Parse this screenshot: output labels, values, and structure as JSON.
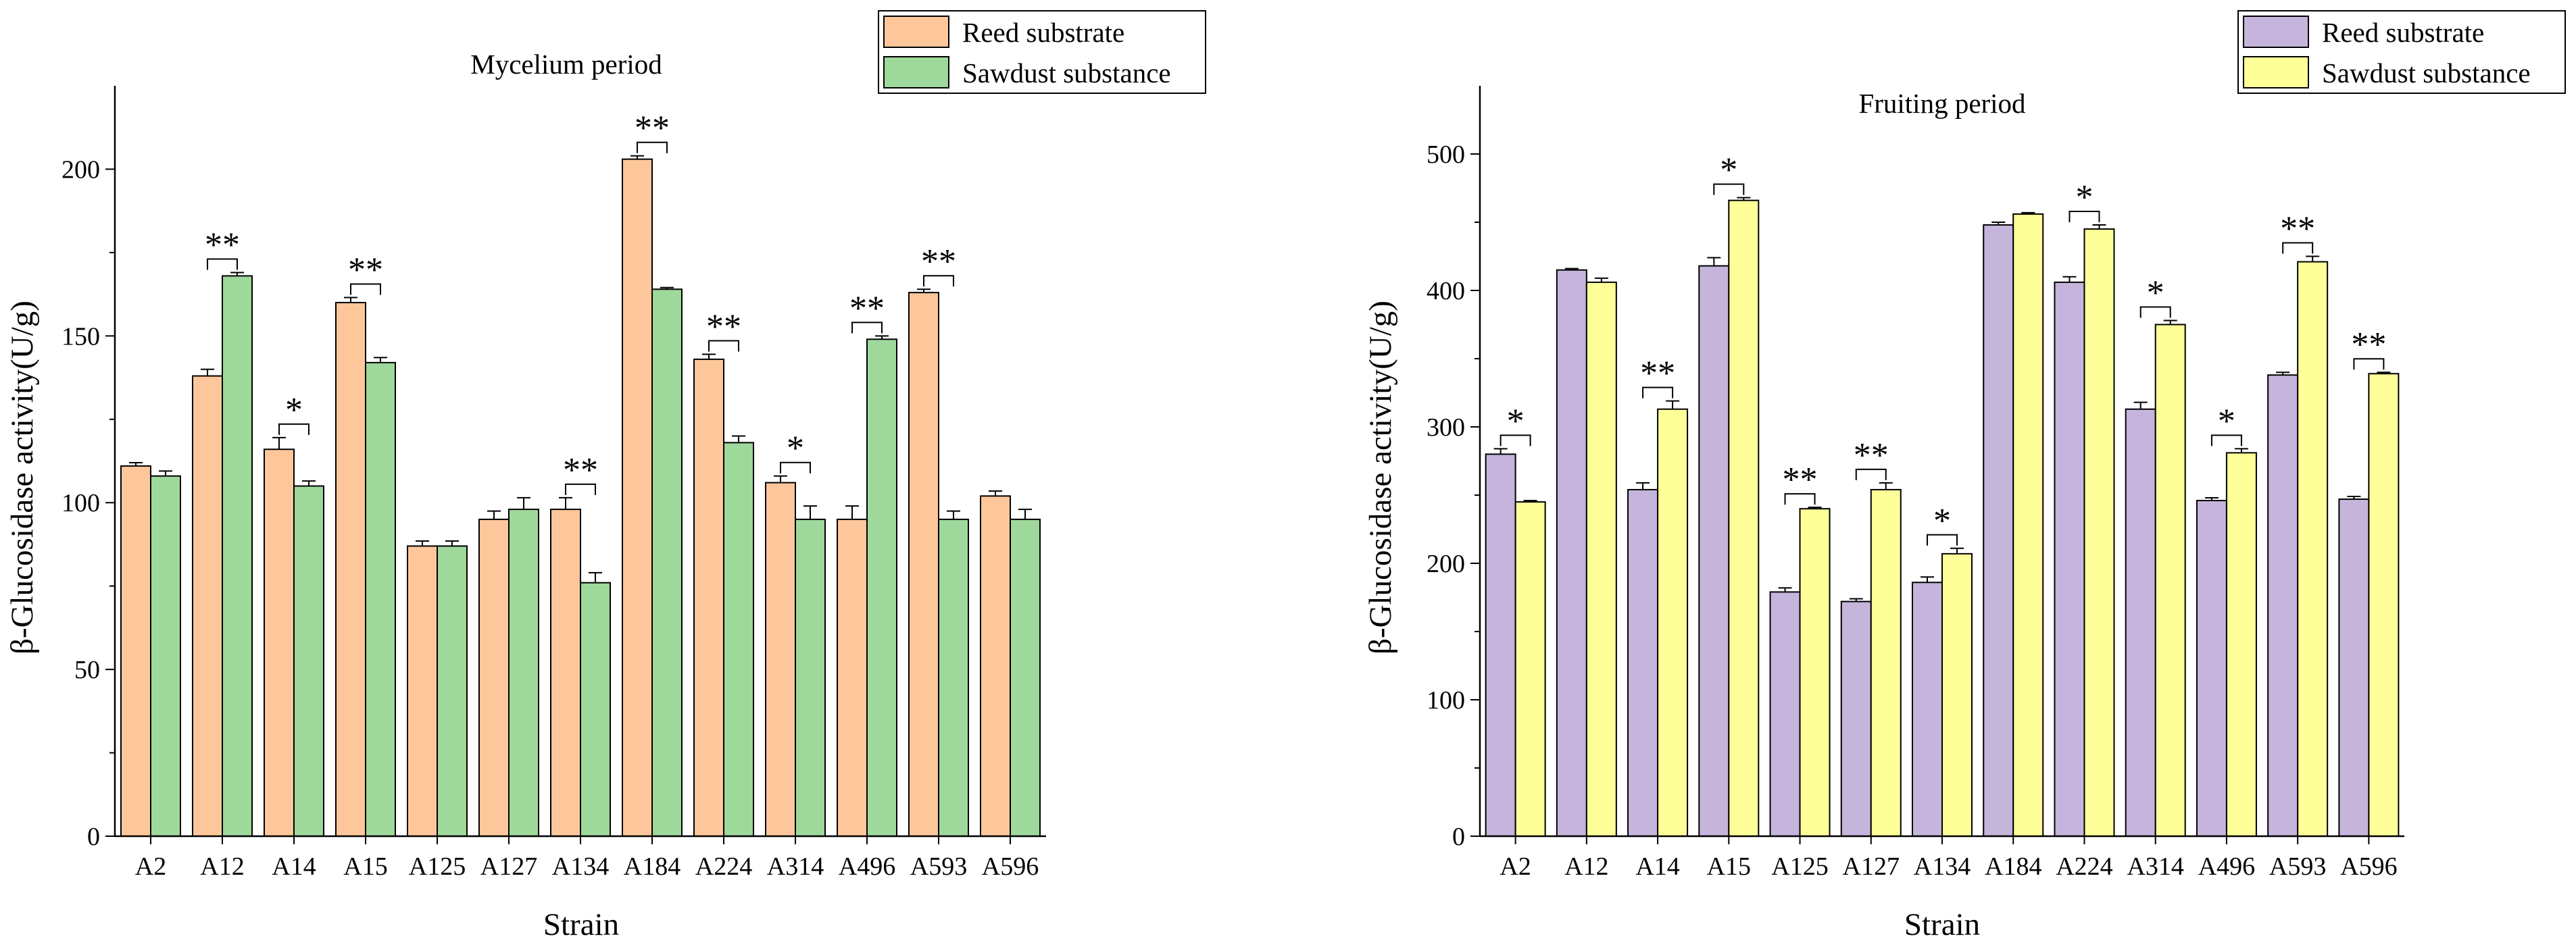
{
  "chart_data": [
    {
      "type": "bar",
      "title": "Mycelium period",
      "xlabel": "Strain",
      "ylabel": "β-Glucosidase activity(U/g)",
      "ylim": [
        0,
        225
      ],
      "yticks": [
        0,
        50,
        100,
        150,
        200
      ],
      "legend_position": "top-right",
      "categories": [
        "A2",
        "A12",
        "A14",
        "A15",
        "A125",
        "A127",
        "A134",
        "A184",
        "A224",
        "A314",
        "A496",
        "A593",
        "A596"
      ],
      "series": [
        {
          "name": "Reed substrate",
          "color": "#fdc79b",
          "values": [
            111,
            138,
            116,
            160,
            87,
            95,
            98,
            203,
            143,
            106,
            95,
            163,
            102
          ],
          "errors": [
            1,
            2,
            3.5,
            1.5,
            1.5,
            2.5,
            3.5,
            1,
            1.5,
            2,
            4,
            1,
            1.5
          ]
        },
        {
          "name": "Sawdust substance",
          "color": "#9fd89b",
          "values": [
            108,
            168,
            105,
            142,
            87,
            98,
            76,
            164,
            118,
            95,
            149,
            95,
            95
          ],
          "errors": [
            1.5,
            1,
            1.5,
            1.5,
            1.5,
            3.5,
            3,
            0.5,
            2,
            4,
            1,
            2.5,
            3
          ]
        }
      ],
      "annotations": [
        {
          "category": "A12",
          "label": "**"
        },
        {
          "category": "A14",
          "label": "*"
        },
        {
          "category": "A15",
          "label": "**"
        },
        {
          "category": "A134",
          "label": "**"
        },
        {
          "category": "A184",
          "label": "**"
        },
        {
          "category": "A224",
          "label": "**"
        },
        {
          "category": "A314",
          "label": "*"
        },
        {
          "category": "A496",
          "label": "**"
        },
        {
          "category": "A593",
          "label": "**"
        }
      ]
    },
    {
      "type": "bar",
      "title": "Fruiting period",
      "xlabel": "Strain",
      "ylabel": "β-Glucosidase activity(U/g)",
      "ylim": [
        0,
        550
      ],
      "yticks": [
        0,
        100,
        200,
        300,
        400,
        500
      ],
      "legend_position": "top-right",
      "categories": [
        "A2",
        "A12",
        "A14",
        "A15",
        "A125",
        "A127",
        "A134",
        "A184",
        "A224",
        "A314",
        "A496",
        "A593",
        "A596"
      ],
      "series": [
        {
          "name": "Reed substrate",
          "color": "#c5b5dc",
          "values": [
            280,
            415,
            254,
            418,
            179,
            172,
            186,
            448,
            406,
            313,
            246,
            338,
            247
          ],
          "errors": [
            4,
            1,
            5,
            6,
            3,
            2,
            4,
            2,
            4,
            5,
            2,
            2,
            2
          ]
        },
        {
          "name": "Sawdust substance",
          "color": "#ffff99",
          "values": [
            245,
            406,
            313,
            466,
            240,
            254,
            207,
            456,
            445,
            375,
            281,
            421,
            339
          ],
          "errors": [
            1,
            3,
            6,
            2,
            1,
            5,
            4,
            1,
            3,
            3,
            3,
            4,
            1
          ]
        }
      ],
      "annotations": [
        {
          "category": "A2",
          "label": "*"
        },
        {
          "category": "A14",
          "label": "**"
        },
        {
          "category": "A15",
          "label": "*"
        },
        {
          "category": "A125",
          "label": "**"
        },
        {
          "category": "A127",
          "label": "**"
        },
        {
          "category": "A134",
          "label": "*"
        },
        {
          "category": "A224",
          "label": "*"
        },
        {
          "category": "A314",
          "label": "*"
        },
        {
          "category": "A496",
          "label": "*"
        },
        {
          "category": "A593",
          "label": "**"
        },
        {
          "category": "A596",
          "label": "**"
        }
      ]
    }
  ]
}
